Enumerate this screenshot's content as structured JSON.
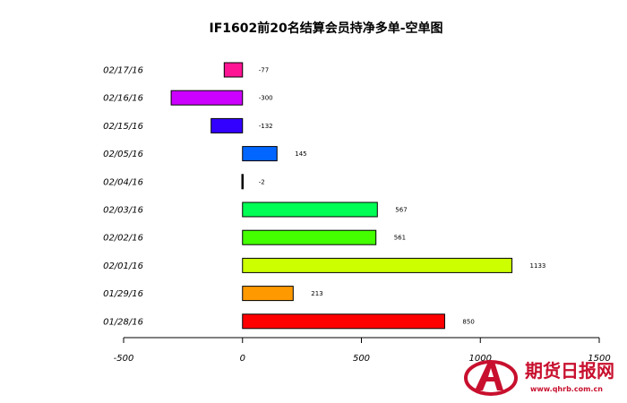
{
  "chart_data": {
    "type": "bar",
    "orientation": "horizontal",
    "title": "IF1602前20名结算会员持净多单-空单图",
    "categories": [
      "02/17/16",
      "02/16/16",
      "02/15/16",
      "02/05/16",
      "02/04/16",
      "02/03/16",
      "02/02/16",
      "02/01/16",
      "01/29/16",
      "01/28/16"
    ],
    "values": [
      -77,
      -300,
      -132,
      145,
      -2,
      567,
      561,
      1133,
      213,
      850
    ],
    "colors": [
      "#ff1493",
      "#cc00ff",
      "#3300ff",
      "#0066ff",
      "#000000",
      "#00ff55",
      "#44ff00",
      "#ccff00",
      "#ff9900",
      "#ff0000"
    ],
    "xlim": [
      -500,
      1500
    ],
    "xticks": [
      -500,
      0,
      500,
      1000,
      1500
    ],
    "xlabel": "",
    "ylabel": "",
    "grid": false,
    "legend": false
  },
  "watermark": {
    "text": "期货日报网",
    "url": "www.qhrb.com.cn"
  }
}
